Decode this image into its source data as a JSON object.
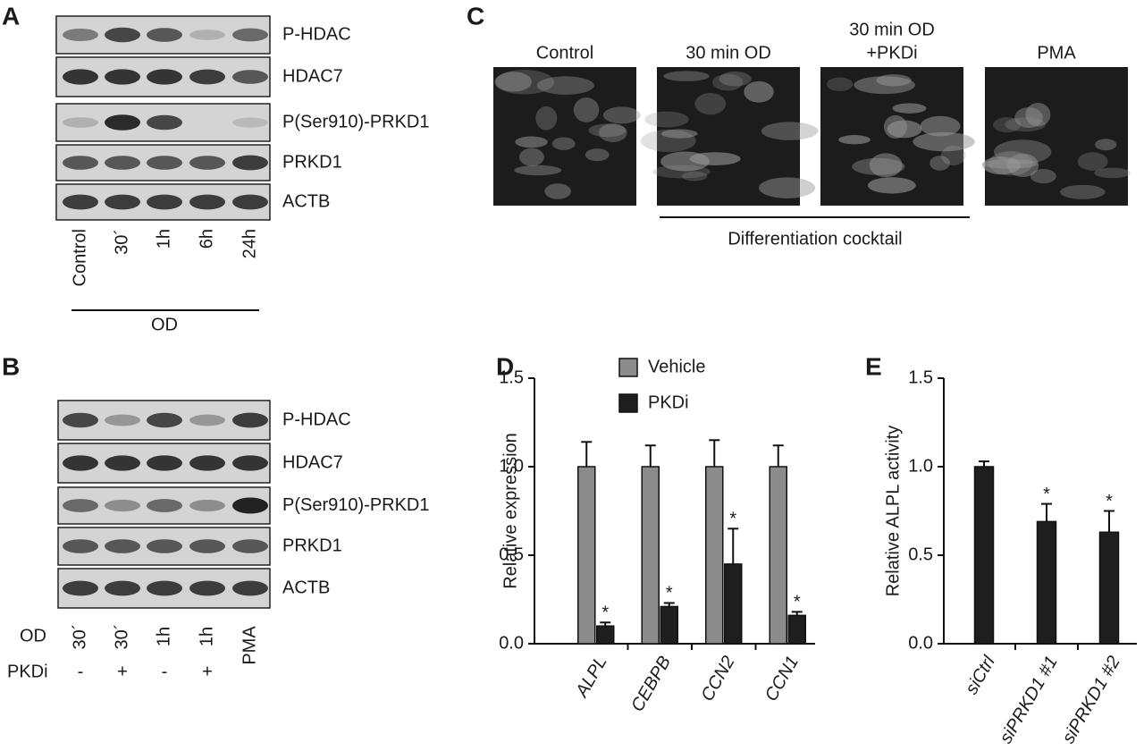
{
  "panel_a": {
    "letter": "A",
    "bands": [
      "P-HDAC",
      "HDAC7",
      "P(Ser910)-PRKD1",
      "PRKD1",
      "ACTB"
    ],
    "lanes": [
      "Control",
      "30´",
      "1h",
      "6h",
      "24h"
    ],
    "group": "OD"
  },
  "panel_b": {
    "letter": "B",
    "bands": [
      "P-HDAC",
      "HDAC7",
      "P(Ser910)-PRKD1",
      "PRKD1",
      "ACTB"
    ],
    "row_labels": [
      "OD",
      "PKDi"
    ],
    "od": [
      "30´",
      "30´",
      "1h",
      "1h",
      "PMA"
    ],
    "pkdi": [
      "-",
      "+",
      "-",
      "+",
      null
    ]
  },
  "panel_c": {
    "letter": "C",
    "images": [
      [
        "Control"
      ],
      [
        "30 min OD"
      ],
      [
        "30 min OD",
        "+PKDi"
      ],
      [
        "PMA"
      ]
    ],
    "group": "Differentiation cocktail"
  },
  "chart_data": [
    {
      "type": "bar",
      "panel": "D",
      "ylabel": "Relative expression",
      "categories": [
        "ALPL",
        "CEBPB",
        "CCN2",
        "CCN1"
      ],
      "series": [
        {
          "name": "Vehicle",
          "color": "#8c8c8c",
          "values": [
            1.0,
            1.0,
            1.0,
            1.0
          ],
          "errors": [
            0.14,
            0.12,
            0.15,
            0.12
          ]
        },
        {
          "name": "PKDi",
          "color": "#1e1e1e",
          "values": [
            0.1,
            0.21,
            0.45,
            0.16
          ],
          "errors": [
            0.02,
            0.02,
            0.2,
            0.02
          ],
          "significance": [
            "*",
            "*",
            "*",
            "*"
          ]
        }
      ],
      "ylim": [
        0,
        1.5
      ],
      "yticks": [
        {
          "value": 0,
          "label": "0.0"
        },
        {
          "value": 0.5,
          "label": "0.5"
        },
        {
          "value": 1,
          "label": "1.0"
        },
        {
          "value": 1.5,
          "label": "1.5"
        }
      ]
    },
    {
      "type": "bar",
      "panel": "E",
      "ylabel": "Relative ALPL activity",
      "categories": [
        "siCtrl",
        "siPRKD1 #1",
        "siPRKD1 #2"
      ],
      "series": [
        {
          "color": "#1e1e1e",
          "values": [
            1.0,
            0.69,
            0.63
          ],
          "errors": [
            0.03,
            0.1,
            0.12
          ],
          "significance": [
            null,
            "*",
            "*"
          ]
        }
      ],
      "ylim": [
        0,
        1.5
      ],
      "yticks": [
        {
          "value": 0,
          "label": "0.0"
        },
        {
          "value": 0.5,
          "label": "0.5"
        },
        {
          "value": 1,
          "label": "1.0"
        },
        {
          "value": 1.5,
          "label": "1.5"
        }
      ]
    }
  ]
}
